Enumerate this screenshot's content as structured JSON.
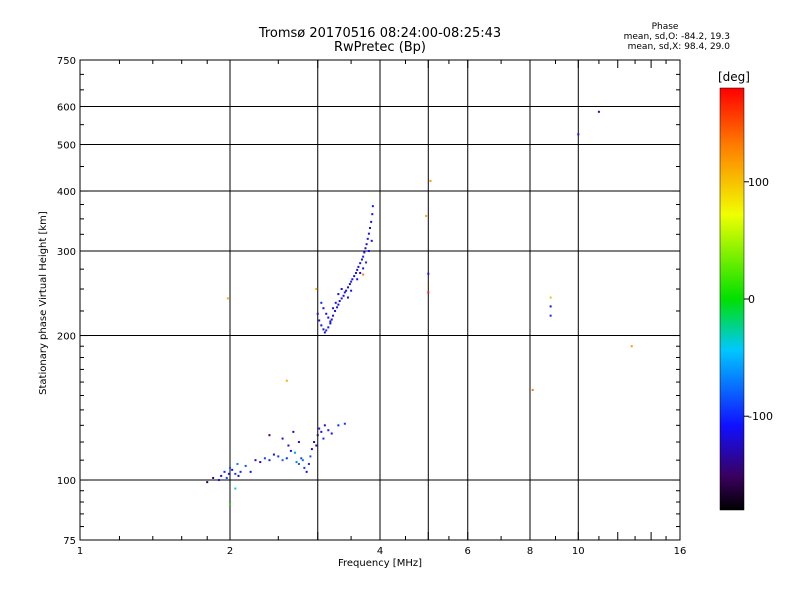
{
  "chart_data": {
    "type": "scatter",
    "title": "Tromsø 20170516 08:24:00-08:25:43",
    "subtitle": "RwPretec (Bp)",
    "xlabel": "Frequency [MHz]",
    "ylabel": "Stationary phase Virtual Height [km]",
    "x_scale": "log",
    "y_scale": "log",
    "xlim": [
      1,
      16
    ],
    "ylim": [
      75,
      750
    ],
    "x_ticks": [
      "1",
      "2",
      "4",
      "6",
      "8",
      "10",
      "16"
    ],
    "y_ticks": [
      "75",
      "100",
      "200",
      "300",
      "400",
      "500",
      "600",
      "750"
    ],
    "grid": true,
    "phase_stats": {
      "title": "Phase",
      "line1": "mean, sd,O:  -84.2, 19.3",
      "line2": "mean, sd,X:  98.4, 29.0"
    },
    "colorbar": {
      "label": "[deg]",
      "range": [
        -180,
        180
      ],
      "ticks": [
        "100",
        "0",
        "-100"
      ]
    },
    "series": [
      {
        "points": [
          [
            1.9,
            100,
            -110
          ],
          [
            1.92,
            102,
            -120
          ],
          [
            1.95,
            104,
            -100
          ],
          [
            1.97,
            101,
            -90
          ],
          [
            1.99,
            103,
            -115
          ],
          [
            2.0,
            106,
            -80
          ],
          [
            2.02,
            105,
            -110
          ],
          [
            2.05,
            103,
            -95
          ],
          [
            2.07,
            108,
            -70
          ],
          [
            2.08,
            102,
            -120
          ],
          [
            2.1,
            104,
            -100
          ],
          [
            2.15,
            107,
            -85
          ],
          [
            2.2,
            104,
            -110
          ],
          [
            2.25,
            110,
            -120
          ],
          [
            2.3,
            109,
            -130
          ],
          [
            2.35,
            111,
            -90
          ],
          [
            2.4,
            110,
            -100
          ],
          [
            2.45,
            113,
            -110
          ],
          [
            2.5,
            112,
            -95
          ],
          [
            2.55,
            110,
            -80
          ],
          [
            2.6,
            111,
            -100
          ],
          [
            2.62,
            118,
            -120
          ],
          [
            2.65,
            115,
            -110
          ],
          [
            2.7,
            114,
            -60
          ],
          [
            2.72,
            109,
            -70
          ],
          [
            2.75,
            108,
            -80
          ],
          [
            2.78,
            111,
            -90
          ],
          [
            2.8,
            110,
            -75
          ],
          [
            2.82,
            106,
            -95
          ],
          [
            2.85,
            104,
            -110
          ],
          [
            2.88,
            108,
            -100
          ],
          [
            2.9,
            112,
            -85
          ],
          [
            2.92,
            116,
            -120
          ],
          [
            2.95,
            120,
            -125
          ],
          [
            2.98,
            118,
            -130
          ],
          [
            3.0,
            124,
            -140
          ],
          [
            3.02,
            128,
            -115
          ],
          [
            3.05,
            126,
            -110
          ],
          [
            3.08,
            122,
            -100
          ],
          [
            3.1,
            130,
            -120
          ],
          [
            3.15,
            127,
            -105
          ],
          [
            3.2,
            125,
            -110
          ],
          [
            3.3,
            130,
            -100
          ],
          [
            3.4,
            131,
            -95
          ],
          [
            2.4,
            124,
            -150
          ],
          [
            2.55,
            122,
            -120
          ],
          [
            2.68,
            126,
            -130
          ],
          [
            2.75,
            120,
            -115
          ],
          [
            3.0,
            222,
            -110
          ],
          [
            3.02,
            215,
            -120
          ],
          [
            3.05,
            210,
            -115
          ],
          [
            3.08,
            206,
            -125
          ],
          [
            3.1,
            203,
            -110
          ],
          [
            3.12,
            205,
            -100
          ],
          [
            3.15,
            208,
            -105
          ],
          [
            3.18,
            212,
            -110
          ],
          [
            3.2,
            216,
            -120
          ],
          [
            3.22,
            220,
            -115
          ],
          [
            3.25,
            225,
            -110
          ],
          [
            3.28,
            229,
            -105
          ],
          [
            3.3,
            232,
            -110
          ],
          [
            3.32,
            236,
            -115
          ],
          [
            3.35,
            239,
            -120
          ],
          [
            3.38,
            242,
            -110
          ],
          [
            3.4,
            246,
            -105
          ],
          [
            3.42,
            248,
            -115
          ],
          [
            3.45,
            252,
            -110
          ],
          [
            3.48,
            256,
            -120
          ],
          [
            3.5,
            259,
            -100
          ],
          [
            3.52,
            262,
            -110
          ],
          [
            3.55,
            266,
            -115
          ],
          [
            3.58,
            270,
            -105
          ],
          [
            3.6,
            274,
            -110
          ],
          [
            3.62,
            278,
            -120
          ],
          [
            3.65,
            283,
            -110
          ],
          [
            3.68,
            288,
            -115
          ],
          [
            3.7,
            292,
            -100
          ],
          [
            3.72,
            298,
            -110
          ],
          [
            3.74,
            304,
            -120
          ],
          [
            3.76,
            310,
            -110
          ],
          [
            3.78,
            318,
            -105
          ],
          [
            3.8,
            326,
            -110
          ],
          [
            3.82,
            335,
            -115
          ],
          [
            3.84,
            345,
            -120
          ],
          [
            3.86,
            358,
            -110
          ],
          [
            3.87,
            372,
            -105
          ],
          [
            3.05,
            234,
            -100
          ],
          [
            3.08,
            228,
            -110
          ],
          [
            3.12,
            222,
            -115
          ],
          [
            3.15,
            218,
            -120
          ],
          [
            3.18,
            214,
            -110
          ],
          [
            3.22,
            228,
            -105
          ],
          [
            3.26,
            234,
            -110
          ],
          [
            3.3,
            244,
            -115
          ],
          [
            3.35,
            250,
            -120
          ],
          [
            3.45,
            240,
            -110
          ],
          [
            3.5,
            248,
            -105
          ],
          [
            3.6,
            262,
            -110
          ],
          [
            3.65,
            270,
            -120
          ],
          [
            3.7,
            276,
            -110
          ],
          [
            3.75,
            284,
            -100
          ],
          [
            3.8,
            300,
            -110
          ],
          [
            3.85,
            315,
            -115
          ],
          [
            5.0,
            269,
            -110
          ],
          [
            8.8,
            230,
            -110
          ],
          [
            8.8,
            220,
            -100
          ],
          [
            10.0,
            525,
            -110
          ],
          [
            11.0,
            585,
            -120
          ]
        ]
      },
      {
        "points": [
          [
            1.8,
            99,
            -160
          ],
          [
            1.85,
            101,
            -150
          ],
          [
            2.0,
            89,
            10
          ],
          [
            2.05,
            96,
            -40
          ],
          [
            1.98,
            239,
            110
          ],
          [
            2.6,
            161,
            110
          ],
          [
            2.98,
            250,
            110
          ],
          [
            3.7,
            268,
            130
          ],
          [
            4.95,
            355,
            110
          ],
          [
            5.05,
            420,
            120
          ],
          [
            5.0,
            246,
            170
          ],
          [
            8.1,
            154,
            130
          ],
          [
            8.8,
            240,
            100
          ],
          [
            12.8,
            190,
            120
          ]
        ]
      }
    ]
  }
}
